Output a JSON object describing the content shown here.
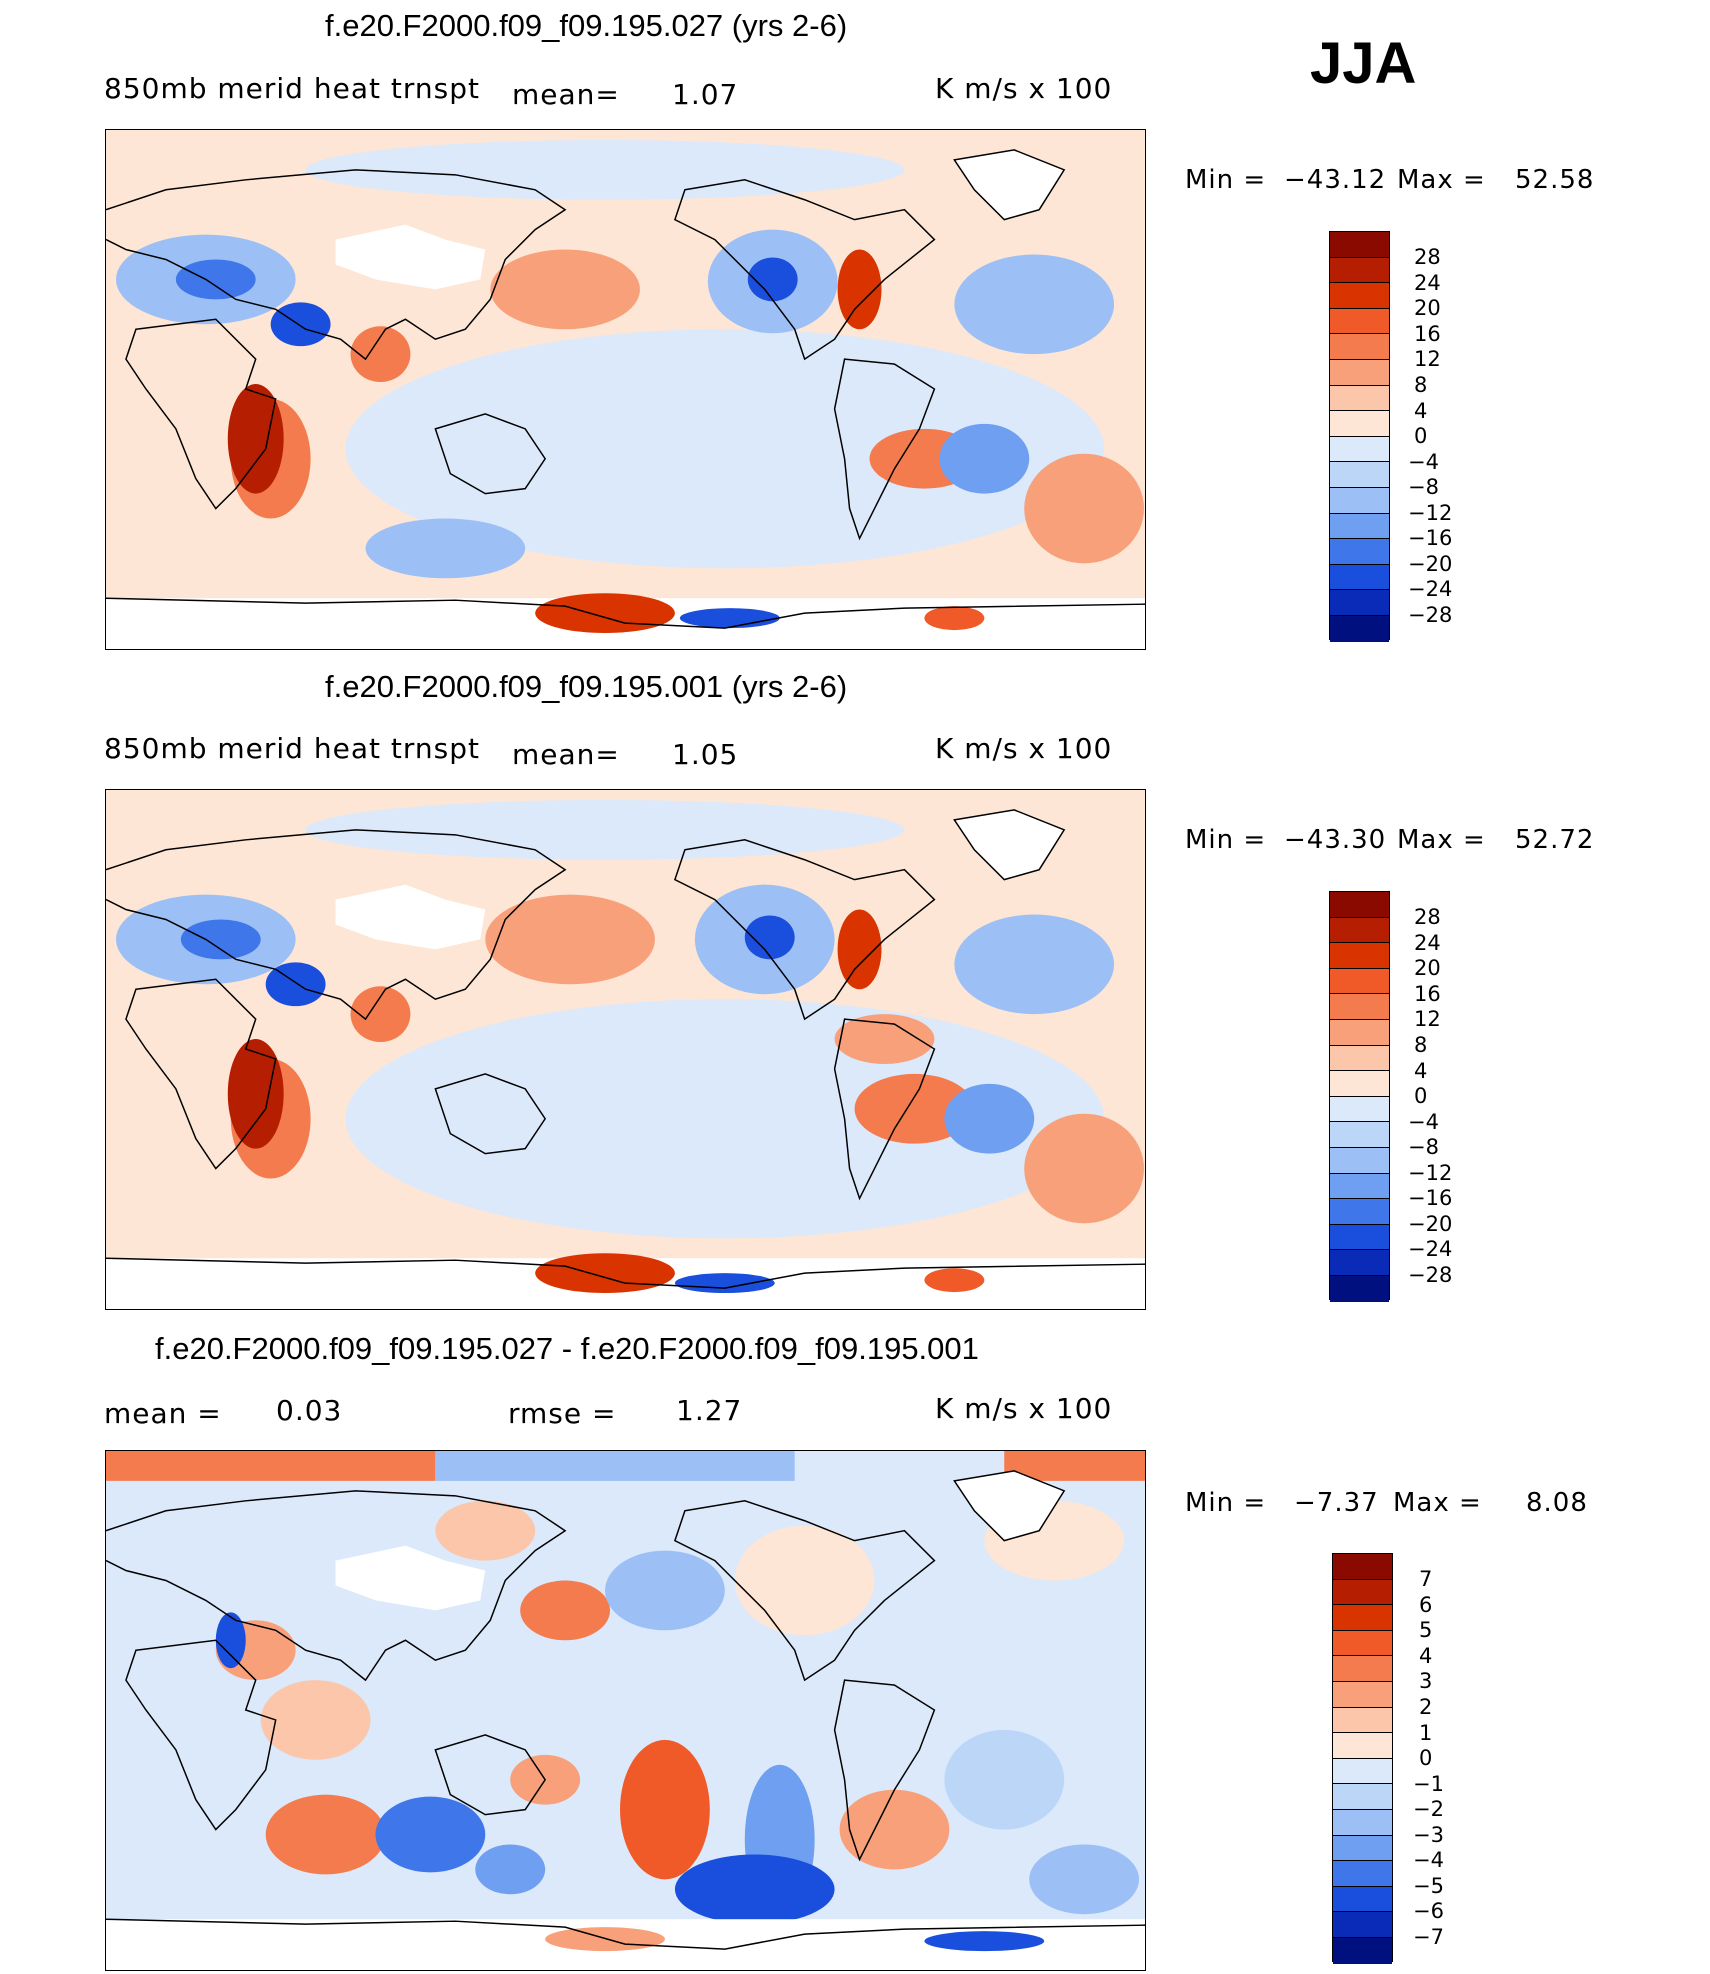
{
  "season": "JJA",
  "units": "K  m/s  x  100",
  "panels": [
    {
      "title": "f.e20.F2000.f09_f09.195.027 (yrs 2-6)",
      "variable": "850mb  merid  heat  trnspt",
      "mean_label": "mean=",
      "mean_value": "1.07",
      "min_label": "Min  =",
      "min_value": "−43.12",
      "max_label": "Max  =",
      "max_value": "52.58",
      "levels": [
        "28",
        "24",
        "20",
        "16",
        "12",
        "8",
        "4",
        "0",
        "−4",
        "−8",
        "−12",
        "−16",
        "−20",
        "−24",
        "−28"
      ]
    },
    {
      "title": "f.e20.F2000.f09_f09.195.001 (yrs 2-6)",
      "variable": "850mb  merid  heat  trnspt",
      "mean_label": "mean=",
      "mean_value": "1.05",
      "min_label": "Min  =",
      "min_value": "−43.30",
      "max_label": "Max  =",
      "max_value": "52.72",
      "levels": [
        "28",
        "24",
        "20",
        "16",
        "12",
        "8",
        "4",
        "0",
        "−4",
        "−8",
        "−12",
        "−16",
        "−20",
        "−24",
        "−28"
      ]
    },
    {
      "title": "f.e20.F2000.f09_f09.195.027 - f.e20.F2000.f09_f09.195.001",
      "mean_label": "mean  =",
      "mean_value": "0.03",
      "rmse_label": "rmse  =",
      "rmse_value": "1.27",
      "min_label": "Min  =",
      "min_value": "−7.37",
      "max_label": "Max  =",
      "max_value": "8.08",
      "levels": [
        "7",
        "6",
        "5",
        "4",
        "3",
        "2",
        "1",
        "0",
        "−1",
        "−2",
        "−3",
        "−4",
        "−5",
        "−6",
        "−7"
      ]
    }
  ],
  "colors": {
    "scale": [
      "#8b0a00",
      "#b51e00",
      "#d93300",
      "#f05a28",
      "#f47b4e",
      "#f7a07a",
      "#fbc6aa",
      "#fde6d5",
      "#dbe9fa",
      "#bcd6f8",
      "#9cc0f5",
      "#6f9ff0",
      "#3f76ea",
      "#1a4fde",
      "#0a2ab8",
      "#00117f"
    ],
    "land_mask": "#ffffff",
    "coast": "#000000"
  }
}
